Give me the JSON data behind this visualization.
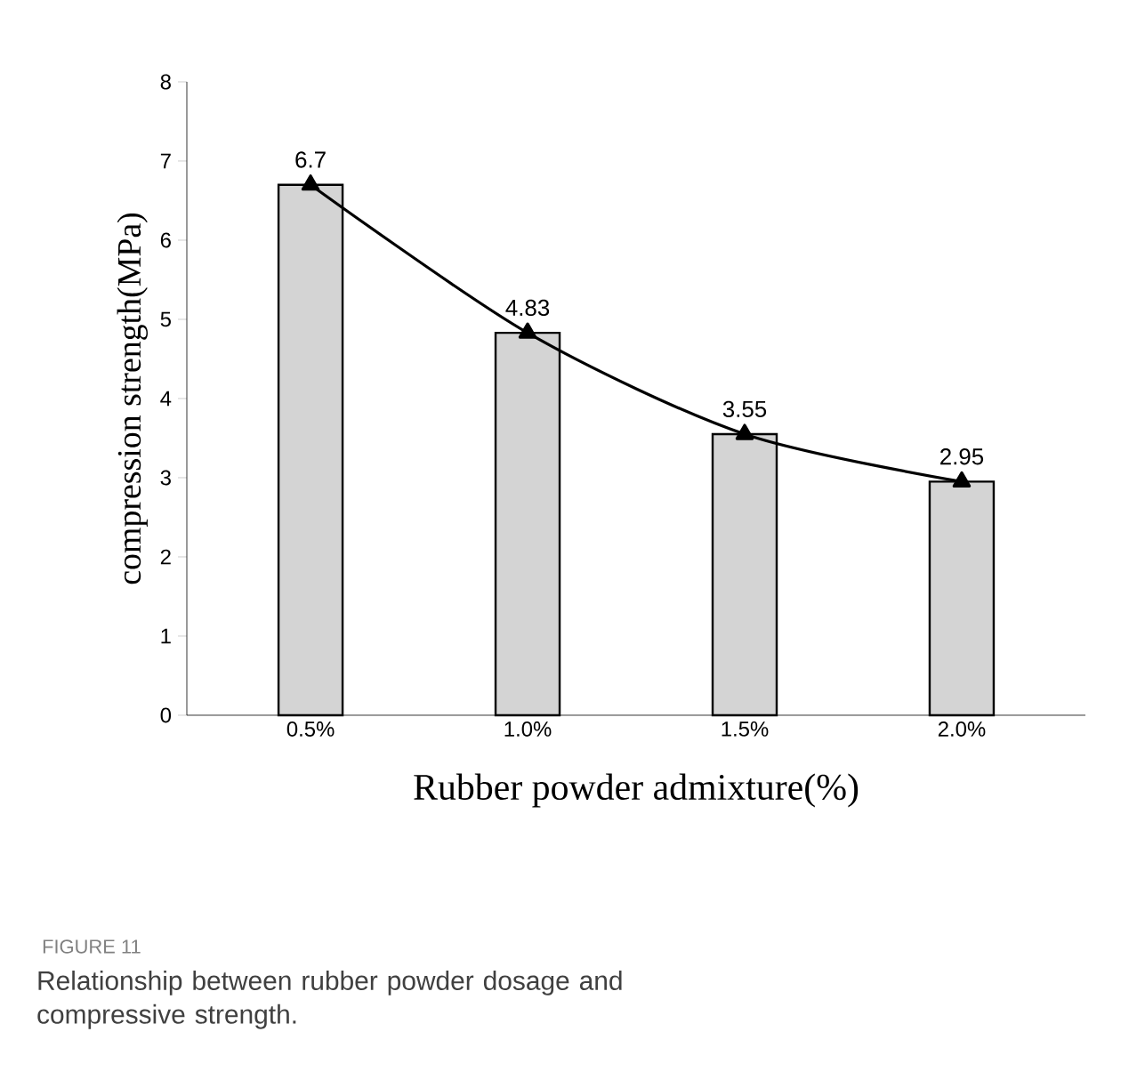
{
  "chart_data": {
    "type": "bar",
    "xlabel": "Rubber powder admixture(%)",
    "ylabel": "compression strength(MPa)",
    "categories": [
      "0.5%",
      "1.0%",
      "1.5%",
      "2.0%"
    ],
    "series": [
      {
        "color": "#d4d4d4",
        "values": [
          6.7,
          4.83,
          3.55,
          2.95
        ]
      },
      {
        "type": "line",
        "color": "#000000",
        "marker": "triangle",
        "line_style": "solid",
        "values": [
          6.7,
          4.83,
          3.55,
          2.95
        ],
        "value_labels": [
          "6.7",
          "4.83",
          "3.55",
          "2.95"
        ]
      }
    ],
    "ylim": [
      0,
      8
    ],
    "yticks": [
      0,
      1,
      2,
      3,
      4,
      5,
      6,
      7,
      8
    ],
    "grid": false,
    "annotations": [
      "FIGURE 11",
      "Relationship between rubber powder dosage and compressive strength."
    ]
  }
}
